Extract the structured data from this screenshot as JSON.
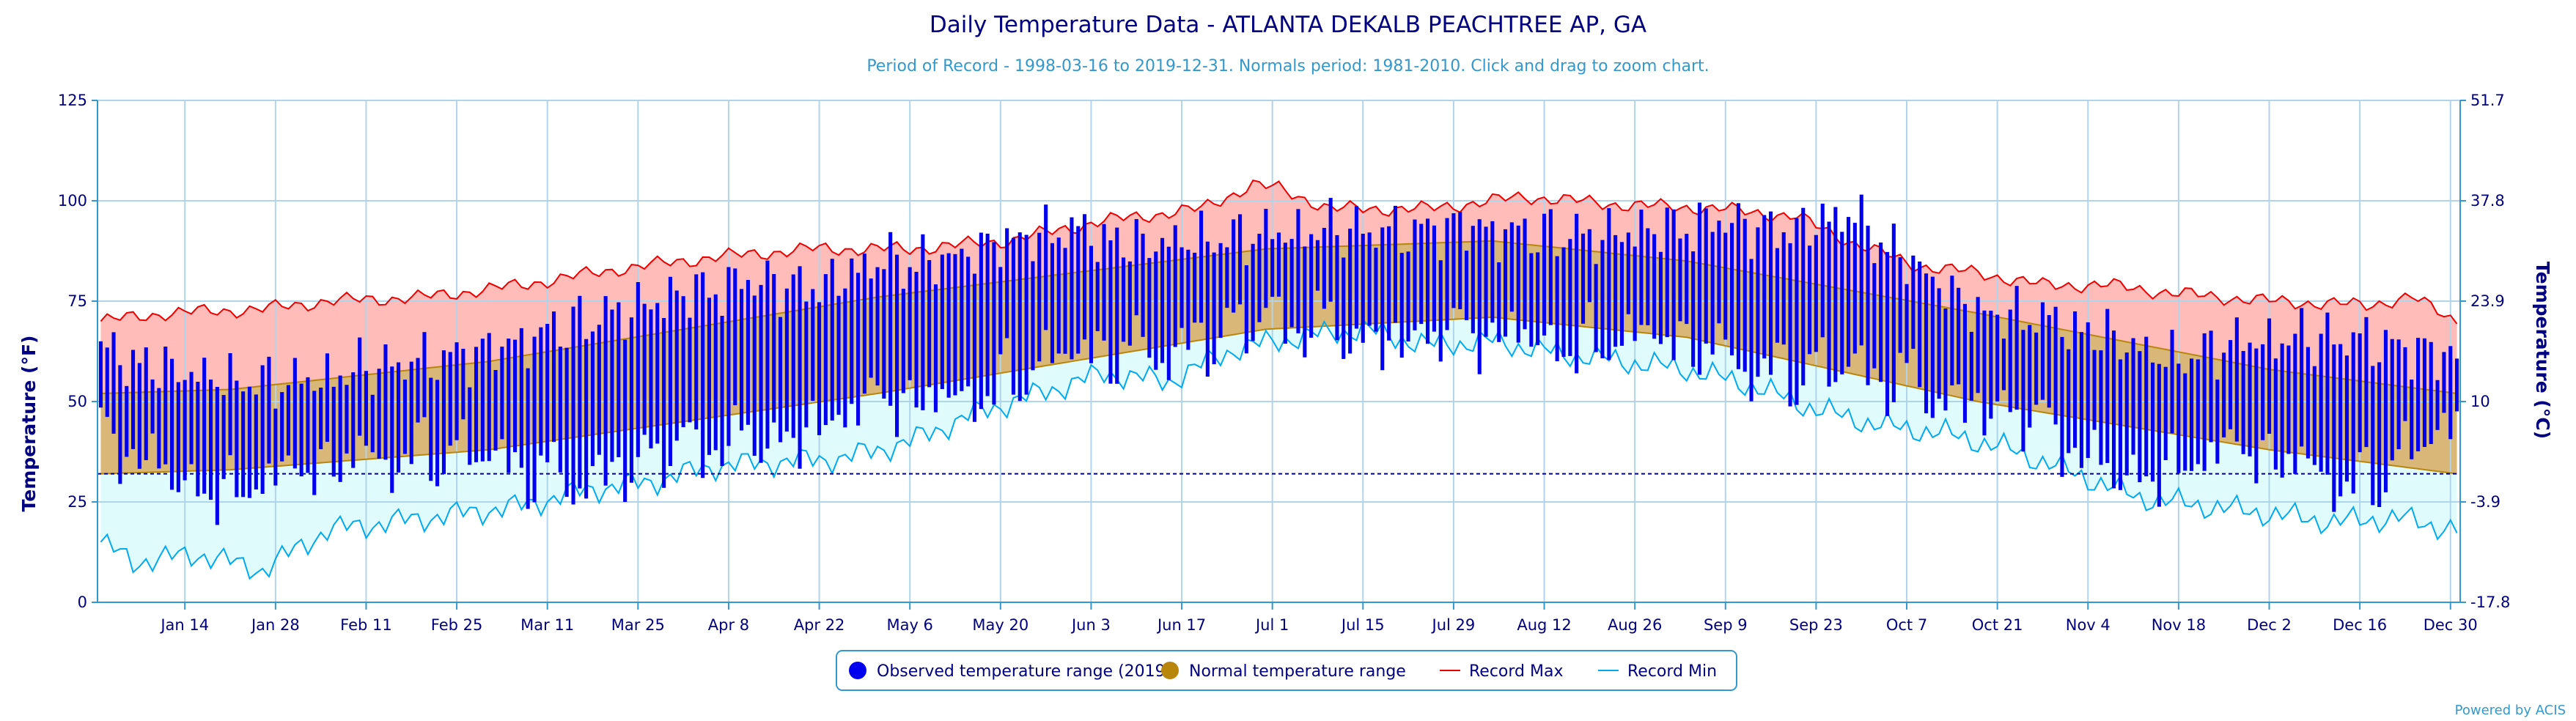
{
  "chart_data": {
    "type": "bar",
    "title": "Daily Temperature Data - ATLANTA DEKALB PEACHTREE AP, GA",
    "subtitle": "Period of Record - 1998-03-16 to 2019-12-31. Normals period: 1981-2010. Click and drag to zoom chart.",
    "ylabel": "Temperature (°F)",
    "ylabel_right": "Temperature (°C)",
    "ylim": [
      0,
      125
    ],
    "y_ticks": [
      "0",
      "25",
      "50",
      "75",
      "100",
      "125"
    ],
    "y_ticks_right": [
      "-17.8",
      "-3.9",
      "10",
      "23.9",
      "37.8",
      "51.7"
    ],
    "x_ticks": [
      {
        "label": "Jan 14",
        "day": 13
      },
      {
        "label": "Jan 28",
        "day": 27
      },
      {
        "label": "Feb 11",
        "day": 41
      },
      {
        "label": "Feb 25",
        "day": 55
      },
      {
        "label": "Mar 11",
        "day": 69
      },
      {
        "label": "Mar 25",
        "day": 83
      },
      {
        "label": "Apr 8",
        "day": 97
      },
      {
        "label": "Apr 22",
        "day": 111
      },
      {
        "label": "May 6",
        "day": 125
      },
      {
        "label": "May 20",
        "day": 139
      },
      {
        "label": "Jun 3",
        "day": 153
      },
      {
        "label": "Jun 17",
        "day": 167
      },
      {
        "label": "Jul 1",
        "day": 181
      },
      {
        "label": "Jul 15",
        "day": 195
      },
      {
        "label": "Jul 29",
        "day": 209
      },
      {
        "label": "Aug 12",
        "day": 223
      },
      {
        "label": "Aug 26",
        "day": 237
      },
      {
        "label": "Sep 9",
        "day": 251
      },
      {
        "label": "Sep 23",
        "day": 265
      },
      {
        "label": "Oct 7",
        "day": 279
      },
      {
        "label": "Oct 21",
        "day": 293
      },
      {
        "label": "Nov 4",
        "day": 307
      },
      {
        "label": "Nov 18",
        "day": 321
      },
      {
        "label": "Dec 2",
        "day": 335
      },
      {
        "label": "Dec 16",
        "day": 349
      },
      {
        "label": "Dec 30",
        "day": 363
      }
    ],
    "freezing_line": 32,
    "normals": {
      "low": {
        "day": [
          0,
          20,
          60,
          120,
          180,
          215,
          245,
          290,
          335,
          364
        ],
        "value": [
          32,
          33,
          38,
          52,
          68,
          71,
          66,
          50,
          38,
          32
        ]
      },
      "high": {
        "day": [
          0,
          20,
          60,
          120,
          180,
          215,
          245,
          290,
          335,
          364
        ],
        "value": [
          52,
          53,
          60,
          76,
          88,
          90,
          85,
          72,
          58,
          52
        ]
      }
    },
    "record_max": {
      "day": [
        0,
        10,
        25,
        35,
        50,
        65,
        80,
        95,
        110,
        125,
        140,
        155,
        170,
        178,
        182,
        190,
        205,
        220,
        235,
        250,
        262,
        270,
        280,
        290,
        300,
        310,
        320,
        335,
        350,
        357,
        364
      ],
      "value": [
        70,
        72,
        73,
        75,
        76,
        79,
        83,
        86,
        88,
        88,
        90,
        95,
        98,
        104,
        103,
        98,
        98,
        101,
        99,
        98,
        96,
        90,
        84,
        82,
        79,
        79,
        77,
        75,
        74,
        76,
        70
      ]
    },
    "record_min": {
      "day": [
        0,
        5,
        15,
        25,
        35,
        45,
        55,
        65,
        75,
        85,
        95,
        105,
        115,
        125,
        135,
        145,
        155,
        165,
        175,
        185,
        195,
        205,
        215,
        225,
        235,
        245,
        255,
        265,
        275,
        285,
        295,
        305,
        315,
        325,
        335,
        345,
        355,
        364
      ],
      "value": [
        15,
        10,
        12,
        8,
        18,
        20,
        22,
        24,
        28,
        30,
        34,
        35,
        36,
        40,
        47,
        52,
        57,
        55,
        63,
        66,
        68,
        64,
        65,
        62,
        60,
        58,
        54,
        48,
        44,
        42,
        38,
        32,
        26,
        24,
        22,
        20,
        21,
        18
      ]
    },
    "observed": {
      "name": "Observed temperature range (2019)",
      "hi_day": [
        0,
        10,
        20,
        30,
        40,
        50,
        60,
        70,
        80,
        90,
        100,
        110,
        120,
        130,
        140,
        150,
        160,
        170,
        180,
        190,
        200,
        210,
        220,
        230,
        240,
        250,
        260,
        270,
        280,
        290,
        300,
        310,
        320,
        330,
        340,
        350,
        364
      ],
      "hi_value": [
        62,
        58,
        55,
        54,
        58,
        60,
        62,
        68,
        72,
        76,
        80,
        78,
        84,
        85,
        90,
        92,
        89,
        90,
        91,
        93,
        92,
        93,
        92,
        91,
        92,
        95,
        92,
        96,
        84,
        72,
        70,
        66,
        60,
        64,
        66,
        65,
        60
      ],
      "lo_day": [
        0,
        10,
        20,
        30,
        40,
        50,
        60,
        70,
        80,
        90,
        100,
        110,
        120,
        130,
        140,
        150,
        160,
        170,
        180,
        190,
        200,
        210,
        220,
        230,
        240,
        250,
        260,
        270,
        280,
        290,
        300,
        310,
        320,
        330,
        340,
        350,
        364
      ],
      "lo_value": [
        40,
        32,
        28,
        30,
        36,
        38,
        34,
        30,
        34,
        36,
        40,
        44,
        48,
        50,
        56,
        60,
        62,
        66,
        68,
        68,
        66,
        65,
        66,
        65,
        64,
        62,
        58,
        56,
        54,
        50,
        42,
        32,
        34,
        36,
        34,
        30,
        42
      ],
      "amplitude": [
        3,
        -2,
        4,
        1,
        -3,
        2,
        -4,
        3,
        0,
        -2,
        4,
        -1,
        -3,
        2,
        3,
        -4,
        1,
        0,
        2,
        -2,
        4,
        -3,
        -1,
        3,
        -2,
        1,
        4,
        -4,
        2,
        0
      ]
    },
    "legend": [
      {
        "label": "Observed temperature range (2019)",
        "type": "dot",
        "color": "#0000ee"
      },
      {
        "label": "Normal temperature range",
        "type": "dot",
        "color": "#b8860b"
      },
      {
        "label": "Record Max",
        "type": "line",
        "color": "#ee0000"
      },
      {
        "label": "Record Min",
        "type": "line",
        "color": "#00aaee"
      }
    ],
    "legend_position": "bottom-center",
    "grid": true,
    "colors": {
      "observed": "#0000ee",
      "normal_fill": "#d9b778",
      "normal_line": "#b8860b",
      "record_max_line": "#ee0000",
      "record_max_fill": "#ffbcb8",
      "record_min_line": "#00aaee",
      "record_min_fill": "#e0fbfc",
      "grid": "#b0d4ec",
      "freezing": "#000080"
    },
    "credit": "Powered by ACIS"
  }
}
